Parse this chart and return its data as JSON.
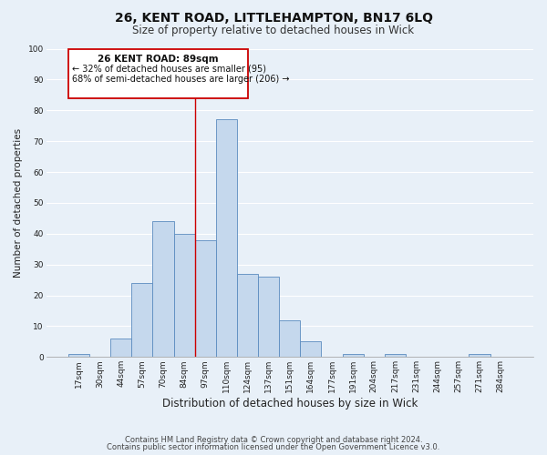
{
  "title": "26, KENT ROAD, LITTLEHAMPTON, BN17 6LQ",
  "subtitle": "Size of property relative to detached houses in Wick",
  "xlabel": "Distribution of detached houses by size in Wick",
  "ylabel": "Number of detached properties",
  "bar_labels": [
    "17sqm",
    "30sqm",
    "44sqm",
    "57sqm",
    "70sqm",
    "84sqm",
    "97sqm",
    "110sqm",
    "124sqm",
    "137sqm",
    "151sqm",
    "164sqm",
    "177sqm",
    "191sqm",
    "204sqm",
    "217sqm",
    "231sqm",
    "244sqm",
    "257sqm",
    "271sqm",
    "284sqm"
  ],
  "bar_values": [
    1,
    0,
    6,
    24,
    44,
    40,
    38,
    77,
    27,
    26,
    12,
    5,
    0,
    1,
    0,
    1,
    0,
    0,
    0,
    1,
    0
  ],
  "bar_color": "#c5d8ed",
  "bar_edge_color": "#5a8bbf",
  "ylim": [
    0,
    100
  ],
  "yticks": [
    0,
    10,
    20,
    30,
    40,
    50,
    60,
    70,
    80,
    90,
    100
  ],
  "vline_x": 5.5,
  "vline_color": "#cc0000",
  "annotation_title": "26 KENT ROAD: 89sqm",
  "annotation_line1": "← 32% of detached houses are smaller (95)",
  "annotation_line2": "68% of semi-detached houses are larger (206) →",
  "annotation_box_edgecolor": "#cc0000",
  "footer1": "Contains HM Land Registry data © Crown copyright and database right 2024.",
  "footer2": "Contains public sector information licensed under the Open Government Licence v3.0.",
  "bg_color": "#e8f0f8",
  "plot_bg_color": "#e8f0f8",
  "grid_color": "#ffffff",
  "title_fontsize": 10,
  "subtitle_fontsize": 8.5,
  "xlabel_fontsize": 8.5,
  "ylabel_fontsize": 7.5,
  "tick_fontsize": 6.5,
  "annotation_title_fontsize": 7.5,
  "annotation_line_fontsize": 7,
  "footer_fontsize": 6
}
